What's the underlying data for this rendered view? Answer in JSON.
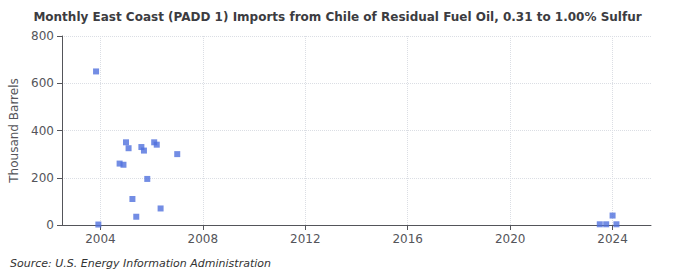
{
  "chart_data": {
    "type": "scatter",
    "title": "Monthly East Coast (PADD 1) Imports from Chile of Residual Fuel Oil, 0.31 to 1.00% Sulfur",
    "ylabel": "Thousand Barrels",
    "annotations": [
      "Source: U.S. Energy Information Administration"
    ],
    "marker": "square",
    "x": [
      2003.83,
      2003.92,
      2004.75,
      2004.9,
      2005.0,
      2005.1,
      2005.25,
      2005.4,
      2005.6,
      2005.7,
      2005.83,
      2006.1,
      2006.2,
      2006.35,
      2007.0,
      2023.5,
      2023.75,
      2024.0,
      2024.15
    ],
    "values": [
      650,
      2,
      260,
      255,
      350,
      325,
      110,
      35,
      330,
      315,
      195,
      350,
      340,
      70,
      300,
      3,
      3,
      40,
      3
    ],
    "xlim": [
      2002.5,
      2025.5
    ],
    "xticks": [
      2004,
      2008,
      2012,
      2016,
      2020,
      2024
    ],
    "ylim": [
      0,
      800
    ],
    "yticks": [
      0,
      200,
      400,
      600,
      800
    ],
    "grid": true
  }
}
